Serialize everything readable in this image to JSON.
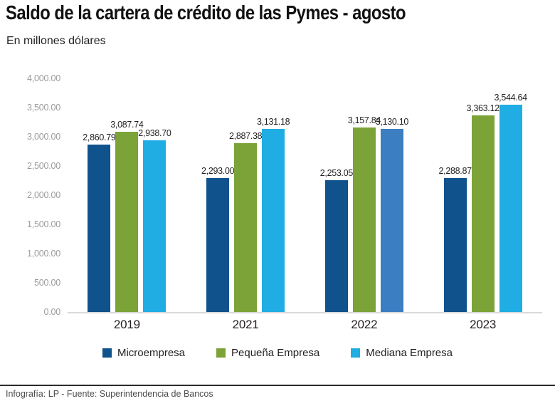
{
  "title": "Saldo de la cartera de crédito de las Pymes - agosto",
  "subtitle": "En millones dólares",
  "footer": {
    "credit": "Infografía: LP - Fuente: Superintendencia de Bancos"
  },
  "chart_data": {
    "type": "bar",
    "title": "Saldo de la cartera de crédito de las Pymes - agosto",
    "subtitle": "En millones dólares",
    "categories": [
      "2019",
      "2021",
      "2022",
      "2023"
    ],
    "series": [
      {
        "name": "Microempresa",
        "color": "#10528C",
        "values": [
          2860.79,
          2293.0,
          2253.05,
          2288.87
        ],
        "labels": [
          "2,860.79",
          "2,293.00",
          "2,253.05",
          "2,288.87"
        ]
      },
      {
        "name": "Pequeña Empresa",
        "color": "#7BA338",
        "values": [
          3087.74,
          2887.38,
          3157.84,
          3363.12
        ],
        "labels": [
          "3,087.74",
          "2,887.38",
          "3,157.84",
          "3,363.12"
        ]
      },
      {
        "name": "Mediana Empresa",
        "color": "#1FADE3",
        "values": [
          2938.7,
          3131.18,
          3130.1,
          3544.64
        ],
        "labels": [
          "2,938.70",
          "3,131.18",
          "3,130.10",
          "3,544.64"
        ],
        "color_overrides": {
          "2": "#3B7EC1"
        }
      }
    ],
    "ylim": [
      0,
      4000
    ],
    "ytick_labels": [
      "4,000.00",
      "3,500.00",
      "3,000.00",
      "2,500.00",
      "2,000.00",
      "1,500.00",
      "1,000.00",
      "500.00",
      "0.00"
    ],
    "grid": false,
    "legend_position": "bottom"
  }
}
